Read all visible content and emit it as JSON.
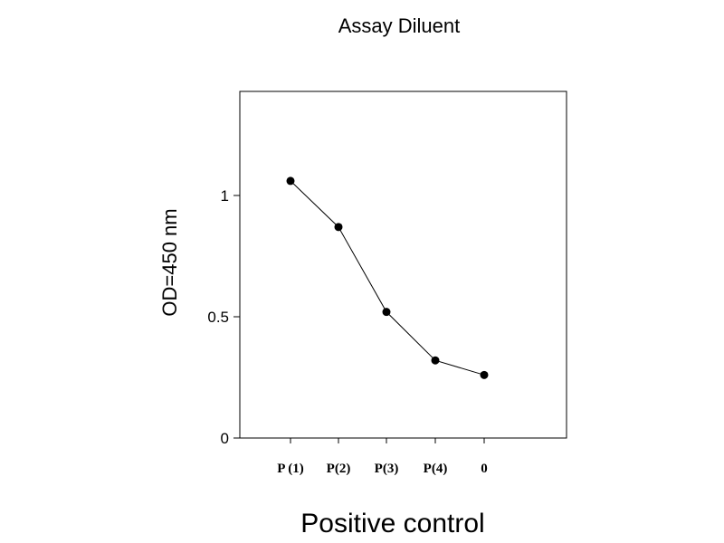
{
  "chart_data": {
    "type": "line",
    "title": "Assay Diluent",
    "xlabel": "Positive control",
    "ylabel": "OD=450 nm",
    "categories": [
      "P (1)",
      "P(2)",
      "P(3)",
      "P(4)",
      "0"
    ],
    "series": [
      {
        "values": [
          1.06,
          0.87,
          0.52,
          0.32,
          0.26
        ]
      }
    ],
    "ylim": [
      0,
      1.4
    ],
    "yticks": [
      0,
      0.5,
      1
    ],
    "ytick_labels": [
      "0",
      "0.5",
      "1"
    ],
    "grid": false,
    "line_color": "#000000",
    "marker_color": "#000000"
  }
}
